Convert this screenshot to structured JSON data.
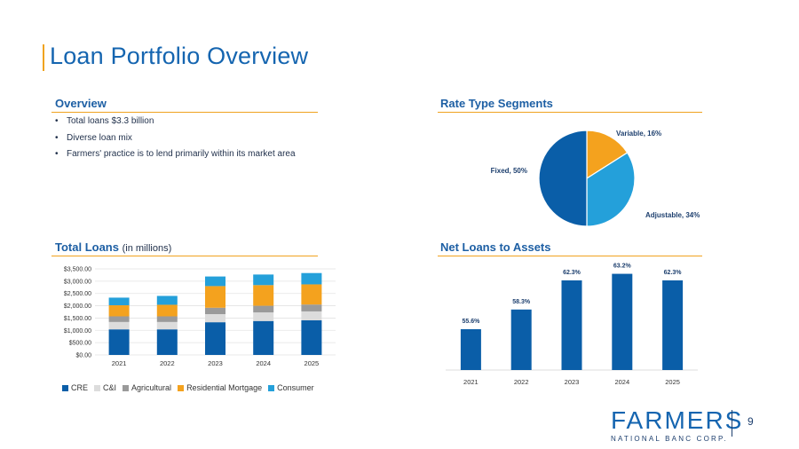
{
  "page": {
    "title": "Loan Portfolio Overview",
    "page_number": "9"
  },
  "overview": {
    "title": "Overview",
    "bullets": [
      "Total loans $3.3 billion",
      "Diverse loan mix",
      "Farmers' practice is to lend primarily within its market area"
    ]
  },
  "logo": {
    "word": "FARMERS",
    "sub": "NATIONAL BANC CORP."
  },
  "colors": {
    "cre": "#0a5ea8",
    "ci": "#dcdcdc",
    "agricultural": "#9a9a9a",
    "residential": "#f4a21e",
    "consumer": "#24a0da",
    "fixed": "#0a5ea8",
    "variable": "#f4a21e",
    "adjustable": "#24a0da",
    "accent": "#f0a31f"
  },
  "chart_data": [
    {
      "type": "pie",
      "title": "Rate Type Segments",
      "slices": [
        {
          "label": "Variable, 16%",
          "value": 16
        },
        {
          "label": "Adjustable, 34%",
          "value": 34
        },
        {
          "label": "Fixed, 50%",
          "value": 50
        }
      ]
    },
    {
      "type": "bar",
      "stacked": true,
      "title": "Total Loans",
      "title_note": "(in millions)",
      "categories": [
        "2021",
        "2022",
        "2023",
        "2024",
        "2025"
      ],
      "y_ticks": [
        "$0.00",
        "$500.00",
        "$1,000.00",
        "$1,500.00",
        "$2,000.00",
        "$2,500.00",
        "$3,000.00",
        "$3,500.00"
      ],
      "ylim": [
        0,
        3500
      ],
      "grid": true,
      "legend": "bottom",
      "series": [
        {
          "name": "CRE",
          "values": [
            1040,
            1040,
            1330,
            1380,
            1410
          ]
        },
        {
          "name": "C&I",
          "values": [
            300,
            300,
            330,
            350,
            360
          ]
        },
        {
          "name": "Agricultural",
          "values": [
            230,
            230,
            260,
            270,
            280
          ]
        },
        {
          "name": "Residential Mortgage",
          "values": [
            450,
            470,
            880,
            840,
            820
          ]
        },
        {
          "name": "Consumer",
          "values": [
            310,
            360,
            390,
            430,
            460
          ]
        }
      ]
    },
    {
      "type": "bar",
      "title": "Net Loans to Assets",
      "categories": [
        "2021",
        "2022",
        "2023",
        "2024",
        "2025"
      ],
      "values": [
        55.6,
        58.3,
        62.3,
        63.2,
        62.3
      ],
      "data_labels": [
        "55.6%",
        "58.3%",
        "62.3%",
        "63.2%",
        "62.3%"
      ],
      "ylim": [
        50,
        64
      ],
      "grid": false
    }
  ]
}
